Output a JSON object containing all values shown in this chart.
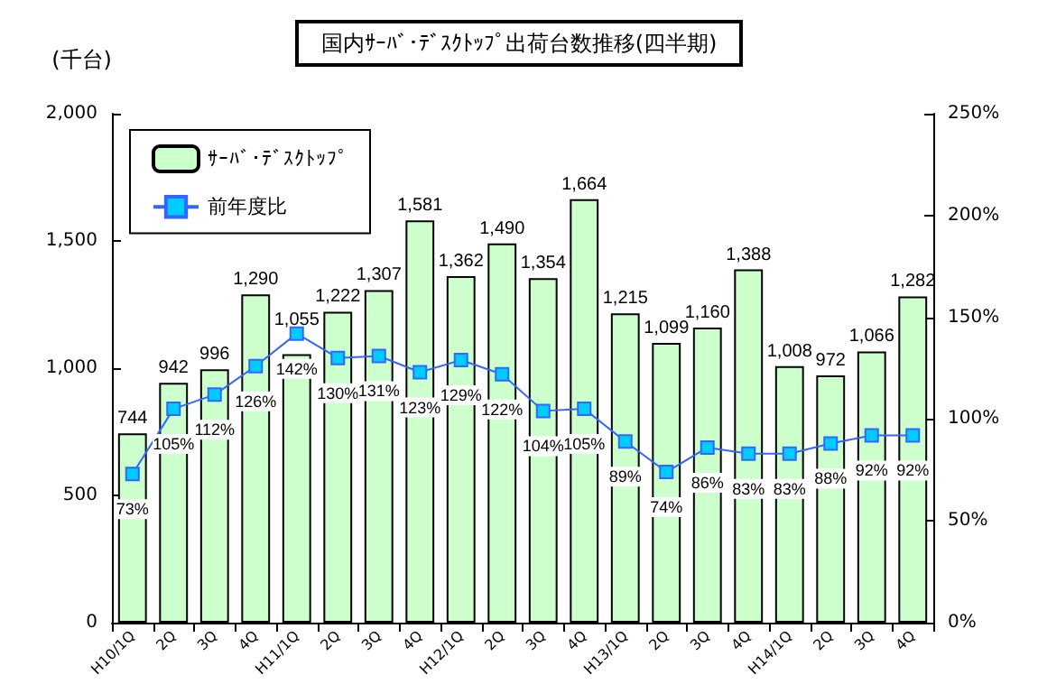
{
  "chart_data": {
    "type": "bar",
    "title": "国内ｻｰﾊﾞ･ﾃﾞｽｸﾄｯﾌﾟ出荷台数推移(四半期)",
    "ylabel": "(千台)",
    "categories": [
      "H10/1Q",
      "2Q",
      "3Q",
      "4Q",
      "H11/1Q",
      "2Q",
      "3Q",
      "4Q",
      "H12/1Q",
      "2Q",
      "3Q",
      "4Q",
      "H13/1Q",
      "2Q",
      "3Q",
      "4Q",
      "H14/1Q",
      "2Q",
      "3Q",
      "4Q"
    ],
    "series": [
      {
        "name": "ｻｰﾊﾞ･ﾃﾞｽｸﾄｯﾌﾟ",
        "color": "#ccffcc",
        "values": [
          744,
          942,
          996,
          1290,
          1055,
          1222,
          1307,
          1581,
          1362,
          1490,
          1354,
          1664,
          1215,
          1099,
          1160,
          1388,
          1008,
          972,
          1066,
          1282
        ],
        "value_labels": [
          "744",
          "942",
          "996",
          "1,290",
          "1,055",
          "1,222",
          "1,307",
          "1,581",
          "1,362",
          "1,490",
          "1,354",
          "1,664",
          "1,215",
          "1,099",
          "1,160",
          "1,388",
          "1,008",
          "972",
          "1,066",
          "1,282"
        ]
      },
      {
        "name": "前年度比",
        "type": "line",
        "axis": "y2",
        "color": "#3366ff",
        "marker": "square",
        "values": [
          73,
          105,
          112,
          126,
          142,
          130,
          131,
          123,
          129,
          122,
          104,
          105,
          89,
          74,
          86,
          83,
          83,
          88,
          92,
          92
        ],
        "value_labels": [
          "73%",
          "105%",
          "112%",
          "126%",
          "142%",
          "130%",
          "131%",
          "123%",
          "129%",
          "122%",
          "104%",
          "105%",
          "89%",
          "74%",
          "86%",
          "83%",
          "83%",
          "88%",
          "92%",
          "92%"
        ]
      }
    ],
    "ylim": [
      0,
      2000
    ],
    "yticks": [
      0,
      {
        "value": 500,
        "label": "500"
      },
      {
        "value": 1000,
        "label": "1,000"
      },
      {
        "value": 1500,
        "label": "1,500"
      },
      {
        "value": 2000,
        "label": "2,000"
      }
    ],
    "y2lim": [
      0,
      250
    ],
    "y2ticks": [
      {
        "value": 0,
        "label": "0%"
      },
      {
        "value": 50,
        "label": "50%"
      },
      {
        "value": 100,
        "label": "100%"
      },
      {
        "value": 150,
        "label": "150%"
      },
      {
        "value": 200,
        "label": "200%"
      },
      {
        "value": 250,
        "label": "250%"
      }
    ],
    "grid": false,
    "legend": "top left"
  }
}
